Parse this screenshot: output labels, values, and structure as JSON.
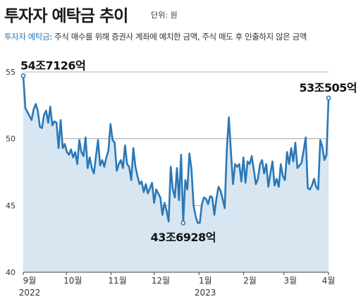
{
  "header": {
    "title": "투자자 예탁금 추이",
    "unit": "단위: 원",
    "note_label": "투자자 예탁금",
    "note_text": ": 주식 매수를 위해 증권사 계좌에 예치한 금액, 주식 매도 후 인출하지 않은 금액"
  },
  "colors": {
    "line": "#2a78b8",
    "area": "#d7e6f1",
    "grid": "#9a9a9a",
    "axis": "#444444"
  },
  "chart_data": {
    "type": "area",
    "x_start": "2022-09-01",
    "x_end": "2023-04-01",
    "x_ticks": [
      {
        "label": "9월",
        "sub": "2022",
        "date": "2022-09-01"
      },
      {
        "label": "10월",
        "sub": "",
        "date": "2022-10-01"
      },
      {
        "label": "11월",
        "sub": "",
        "date": "2022-11-01"
      },
      {
        "label": "12월",
        "sub": "",
        "date": "2022-12-01"
      },
      {
        "label": "1월",
        "sub": "2023",
        "date": "2023-01-01"
      },
      {
        "label": "2월",
        "sub": "",
        "date": "2023-02-01"
      },
      {
        "label": "3월",
        "sub": "",
        "date": "2023-03-01"
      },
      {
        "label": "4월",
        "sub": "",
        "date": "2023-04-01"
      }
    ],
    "y_ticks": [
      40,
      45,
      50,
      55
    ],
    "ylim": [
      40,
      55
    ],
    "grid": true,
    "values": [
      54.7,
      52.3,
      52.0,
      51.7,
      51.4,
      52.2,
      52.6,
      52.1,
      50.9,
      50.8,
      51.8,
      52.1,
      51.2,
      52.4,
      51.0,
      51.3,
      51.2,
      49.3,
      51.4,
      49.3,
      49.6,
      49.0,
      48.8,
      49.2,
      48.6,
      49.0,
      48.1,
      49.9,
      49.0,
      48.7,
      50.1,
      47.8,
      48.6,
      47.8,
      47.4,
      48.7,
      49.9,
      48.0,
      48.4,
      47.9,
      48.6,
      49.1,
      51.1,
      49.9,
      49.7,
      47.6,
      48.1,
      48.4,
      47.8,
      49.5,
      48.1,
      47.9,
      46.9,
      49.3,
      47.9,
      47.2,
      46.6,
      46.8,
      46.0,
      46.6,
      45.9,
      46.3,
      46.7,
      45.2,
      46.2,
      45.9,
      45.6,
      44.3,
      45.2,
      44.6,
      43.8,
      47.9,
      46.2,
      45.6,
      47.8,
      45.4,
      48.8,
      43.7,
      46.9,
      46.2,
      48.9,
      47.7,
      45.0,
      44.2,
      43.7,
      43.7,
      45.1,
      45.6,
      45.5,
      45.1,
      45.7,
      45.6,
      44.3,
      45.5,
      46.4,
      46.1,
      45.5,
      44.8,
      49.2,
      51.6,
      49.0,
      46.6,
      48.1,
      47.9,
      48.1,
      46.8,
      48.6,
      46.7,
      48.3,
      48.1,
      48.7,
      47.7,
      46.6,
      47.0,
      48.1,
      48.4,
      47.4,
      48.1,
      46.4,
      47.4,
      48.3,
      46.5,
      47.0,
      46.4,
      48.1,
      47.2,
      46.9,
      49.0,
      48.1,
      49.3,
      48.3,
      49.7,
      47.8,
      48.0,
      48.2,
      49.1,
      50.1,
      46.3,
      46.2,
      46.5,
      47.0,
      46.4,
      46.2,
      49.9,
      49.4,
      48.4,
      48.8,
      53.05
    ],
    "annotations": [
      {
        "text": "54조7126억",
        "index": 0,
        "value": 54.7126,
        "anchor": "start",
        "pos": "above"
      },
      {
        "text": "43조6928억",
        "index": 77,
        "value": 43.6928,
        "anchor": "middle",
        "pos": "below"
      },
      {
        "text": "53조505억",
        "index": 147,
        "value": 53.0505,
        "anchor": "end",
        "pos": "above"
      }
    ]
  }
}
